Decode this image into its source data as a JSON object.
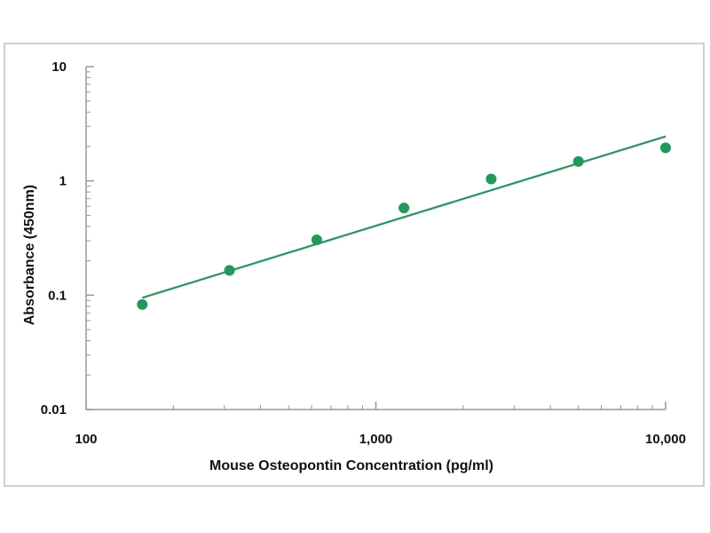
{
  "chart_data": {
    "type": "scatter",
    "title": "",
    "xlabel": "Mouse Osteopontin Concentration (pg/ml)",
    "ylabel": "Absorbance (450nm)",
    "x_scale": "log",
    "y_scale": "log",
    "xlim": [
      100,
      10000
    ],
    "ylim": [
      0.01,
      10
    ],
    "x_ticks": [
      {
        "value": 100,
        "label": "100"
      },
      {
        "value": 1000,
        "label": "1,000"
      },
      {
        "value": 10000,
        "label": "10,000"
      }
    ],
    "y_ticks": [
      {
        "value": 10,
        "label": "10"
      },
      {
        "value": 1,
        "label": "1"
      },
      {
        "value": 0.1,
        "label": "0.1"
      },
      {
        "value": 0.01,
        "label": "0.01"
      }
    ],
    "grid": false,
    "legend": "none",
    "series": [
      {
        "x": [
          156.25,
          312.5,
          625,
          1250,
          2500,
          5000,
          10000
        ],
        "y": [
          0.083,
          0.165,
          0.305,
          0.58,
          1.04,
          1.48,
          1.95
        ]
      }
    ],
    "trendline": {
      "x": [
        156.25,
        10000
      ],
      "y": [
        0.095,
        2.45
      ]
    },
    "colors": {
      "marker": "#1f9a5a",
      "line": "#1f9a5a",
      "axis": "#999999",
      "frame": "#cfcfcf"
    }
  }
}
